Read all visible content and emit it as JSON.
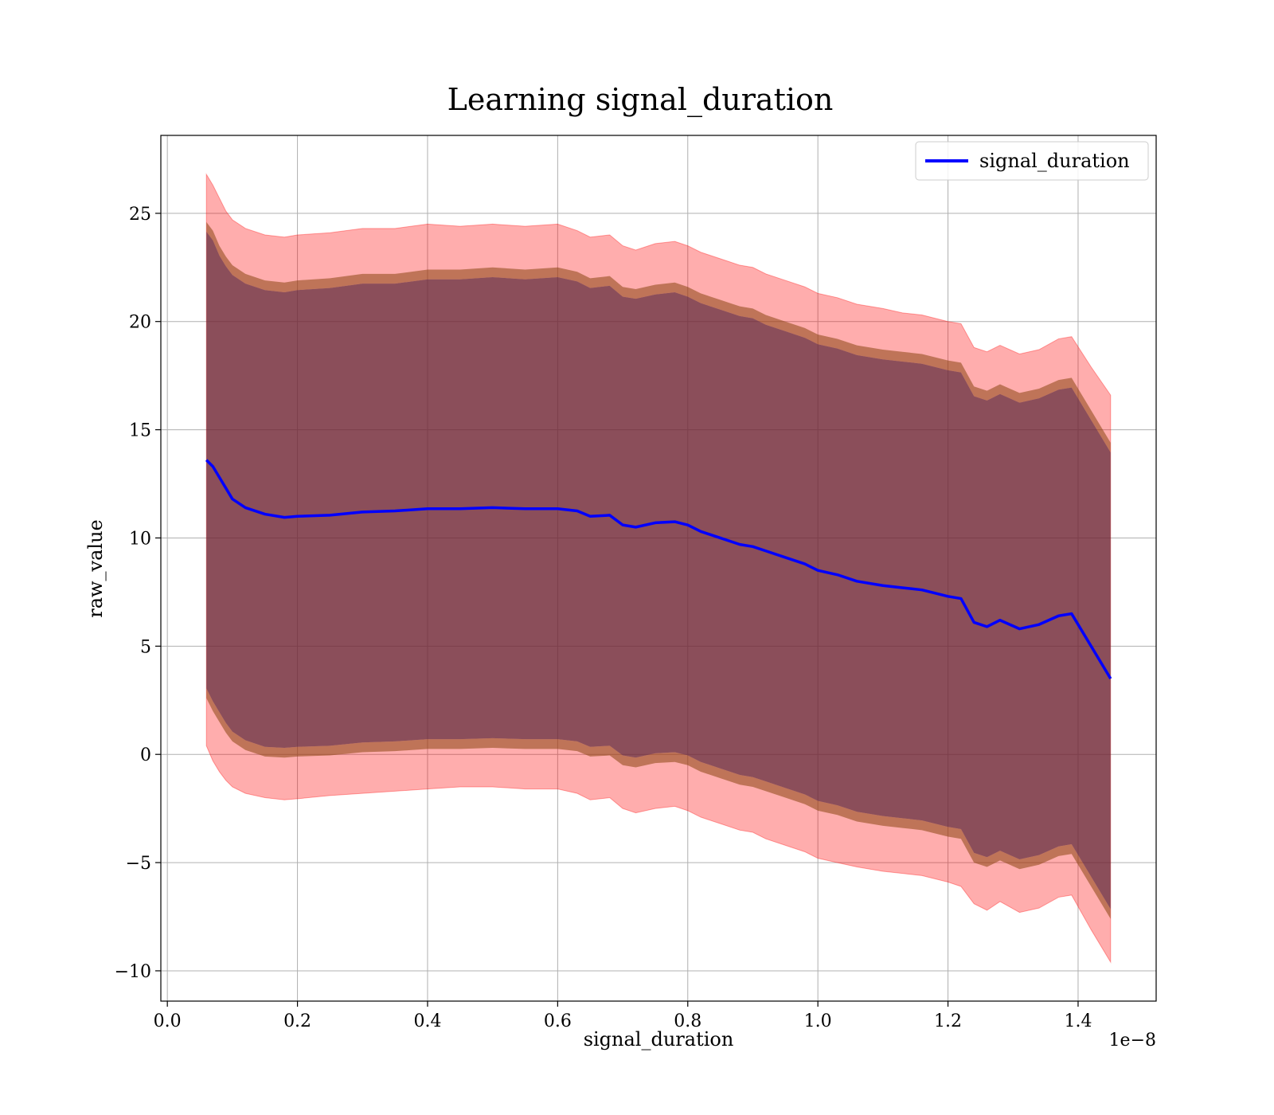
{
  "chart_data": {
    "type": "area",
    "title": "Learning signal_duration",
    "xlabel": "signal_duration",
    "ylabel": "raw_value",
    "x_offset_label": "1e−8",
    "xlim": [
      -0.01,
      1.52
    ],
    "ylim": [
      -11.4,
      28.6
    ],
    "x_ticks": [
      {
        "value": 0.0,
        "label": "0.0"
      },
      {
        "value": 0.2,
        "label": "0.2"
      },
      {
        "value": 0.4,
        "label": "0.4"
      },
      {
        "value": 0.6,
        "label": "0.6"
      },
      {
        "value": 0.8,
        "label": "0.8"
      },
      {
        "value": 1.0,
        "label": "1.0"
      },
      {
        "value": 1.2,
        "label": "1.2"
      },
      {
        "value": 1.4,
        "label": "1.4"
      }
    ],
    "y_ticks": [
      {
        "value": -10,
        "label": "−10"
      },
      {
        "value": -5,
        "label": "−5"
      },
      {
        "value": 0,
        "label": "0"
      },
      {
        "value": 5,
        "label": "5"
      },
      {
        "value": 10,
        "label": "10"
      },
      {
        "value": 15,
        "label": "15"
      },
      {
        "value": 20,
        "label": "20"
      },
      {
        "value": 25,
        "label": "25"
      }
    ],
    "grid": true,
    "legend": {
      "position": "top-right",
      "entries": [
        "signal_duration"
      ]
    },
    "x": [
      0.06,
      0.07,
      0.08,
      0.09,
      0.1,
      0.12,
      0.15,
      0.18,
      0.2,
      0.25,
      0.3,
      0.35,
      0.4,
      0.45,
      0.5,
      0.55,
      0.6,
      0.63,
      0.65,
      0.68,
      0.7,
      0.72,
      0.75,
      0.78,
      0.8,
      0.82,
      0.85,
      0.88,
      0.9,
      0.92,
      0.95,
      0.98,
      1.0,
      1.03,
      1.06,
      1.1,
      1.13,
      1.16,
      1.2,
      1.22,
      1.24,
      1.26,
      1.28,
      1.31,
      1.34,
      1.37,
      1.39,
      1.42,
      1.45
    ],
    "series": [
      {
        "name": "signal_duration",
        "color": "#0000ff",
        "values": [
          13.6,
          13.3,
          12.8,
          12.3,
          11.8,
          11.4,
          11.1,
          10.95,
          11.0,
          11.05,
          11.2,
          11.25,
          11.35,
          11.35,
          11.4,
          11.35,
          11.35,
          11.25,
          11.0,
          11.05,
          10.6,
          10.5,
          10.7,
          10.75,
          10.6,
          10.3,
          10.0,
          9.7,
          9.6,
          9.4,
          9.1,
          8.8,
          8.5,
          8.3,
          8.0,
          7.8,
          7.7,
          7.6,
          7.3,
          7.2,
          6.1,
          5.9,
          6.2,
          5.8,
          6.0,
          6.4,
          6.5,
          5.0,
          3.5
        ],
        "band_inner_lower": [
          2.6,
          2.0,
          1.5,
          1.0,
          0.6,
          0.2,
          -0.1,
          -0.15,
          -0.1,
          -0.05,
          0.1,
          0.15,
          0.25,
          0.25,
          0.3,
          0.25,
          0.25,
          0.15,
          -0.1,
          -0.05,
          -0.5,
          -0.6,
          -0.4,
          -0.35,
          -0.5,
          -0.8,
          -1.1,
          -1.4,
          -1.5,
          -1.7,
          -2.0,
          -2.3,
          -2.6,
          -2.8,
          -3.1,
          -3.3,
          -3.4,
          -3.5,
          -3.8,
          -3.9,
          -5.0,
          -5.2,
          -4.9,
          -5.3,
          -5.1,
          -4.7,
          -4.6,
          -6.1,
          -7.6
        ],
        "band_inner_upper": [
          24.6,
          24.2,
          23.5,
          23.0,
          22.6,
          22.2,
          21.9,
          21.8,
          21.9,
          22.0,
          22.2,
          22.2,
          22.4,
          22.4,
          22.5,
          22.4,
          22.5,
          22.3,
          22.0,
          22.1,
          21.6,
          21.5,
          21.7,
          21.8,
          21.6,
          21.3,
          21.0,
          20.7,
          20.6,
          20.3,
          20.0,
          19.7,
          19.4,
          19.2,
          18.9,
          18.7,
          18.6,
          18.5,
          18.2,
          18.1,
          17.0,
          16.8,
          17.1,
          16.7,
          16.9,
          17.3,
          17.4,
          15.9,
          14.4
        ],
        "band_outer_lower": [
          0.4,
          -0.3,
          -0.8,
          -1.2,
          -1.5,
          -1.8,
          -2.0,
          -2.1,
          -2.05,
          -1.9,
          -1.8,
          -1.7,
          -1.6,
          -1.5,
          -1.5,
          -1.6,
          -1.6,
          -1.8,
          -2.1,
          -2.0,
          -2.5,
          -2.7,
          -2.5,
          -2.4,
          -2.6,
          -2.9,
          -3.2,
          -3.5,
          -3.6,
          -3.9,
          -4.2,
          -4.5,
          -4.8,
          -5.0,
          -5.2,
          -5.4,
          -5.5,
          -5.6,
          -5.9,
          -6.1,
          -6.9,
          -7.2,
          -6.8,
          -7.3,
          -7.1,
          -6.6,
          -6.5,
          -8.1,
          -9.6
        ],
        "band_outer_upper": [
          26.8,
          26.3,
          25.7,
          25.1,
          24.7,
          24.3,
          24.0,
          23.9,
          24.0,
          24.1,
          24.3,
          24.3,
          24.5,
          24.4,
          24.5,
          24.4,
          24.5,
          24.2,
          23.9,
          24.0,
          23.5,
          23.3,
          23.6,
          23.7,
          23.5,
          23.2,
          22.9,
          22.6,
          22.5,
          22.2,
          21.9,
          21.6,
          21.3,
          21.1,
          20.8,
          20.6,
          20.4,
          20.3,
          20.0,
          19.9,
          18.8,
          18.6,
          18.9,
          18.5,
          18.7,
          19.2,
          19.3,
          17.9,
          16.6
        ]
      }
    ],
    "colors": {
      "line": "#0000ff",
      "outer_band": "#ff0000",
      "inner_band_edge": "#8b4513",
      "inner_band_fill": "#5e2a3a"
    }
  }
}
